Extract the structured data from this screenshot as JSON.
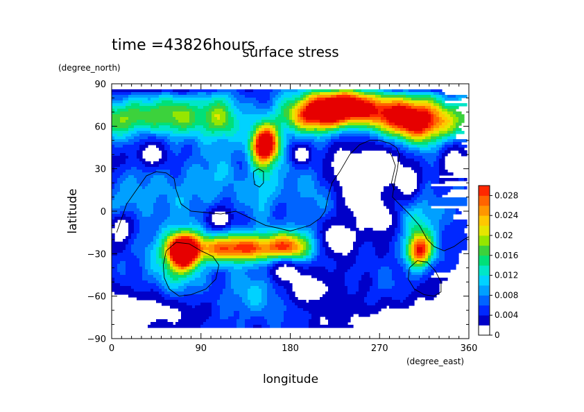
{
  "header": {
    "time_label": "time =43826hours",
    "title": "surface stress"
  },
  "chart_data": {
    "type": "heatmap",
    "title": "surface stress",
    "xlabel": "longitude",
    "ylabel": "latitude",
    "x_units": "(degree_east)",
    "y_units": "(degree_north)",
    "xlim": [
      0,
      360
    ],
    "ylim": [
      -90,
      90
    ],
    "x_ticks": [
      0,
      90,
      180,
      270,
      360
    ],
    "y_ticks": [
      -90,
      -60,
      -30,
      0,
      30,
      60,
      90
    ],
    "x_tick_labels": [
      "0",
      "90",
      "180",
      "270",
      "360"
    ],
    "y_tick_labels": [
      "−90",
      "−60",
      "−30",
      "0",
      "30",
      "60",
      "90"
    ],
    "colorbar": {
      "min": 0,
      "max": 0.03,
      "tick_values": [
        0,
        0.004,
        0.008,
        0.012,
        0.016,
        0.02,
        0.024,
        0.028
      ],
      "tick_labels": [
        "0",
        "0.004",
        "0.008",
        "0.012",
        "0.016",
        "0.02",
        "0.024",
        "0.028"
      ],
      "levels": [
        0.002,
        0.004,
        0.006,
        0.008,
        0.01,
        0.012,
        0.014,
        0.016,
        0.018,
        0.02,
        0.022,
        0.024,
        0.026,
        0.028,
        0.03
      ],
      "colors": [
        "#ffffff",
        "#0000c8",
        "#0028ff",
        "#0064ff",
        "#00a0ff",
        "#00d2ff",
        "#00e6c8",
        "#00e078",
        "#3cd23c",
        "#96e600",
        "#e6e600",
        "#ffc800",
        "#ff9600",
        "#ff6400",
        "#ff2800",
        "#e60000"
      ]
    },
    "field": {
      "background": 0.0055,
      "features": [
        {
          "lon": 20,
          "lat": 66,
          "amp": 0.01,
          "sx": 20,
          "sy": 9
        },
        {
          "lon": 65,
          "lat": 68,
          "amp": 0.012,
          "sx": 22,
          "sy": 10
        },
        {
          "lon": 110,
          "lat": 65,
          "amp": 0.013,
          "sx": 14,
          "sy": 11
        },
        {
          "lon": 155,
          "lat": 47,
          "amp": 0.03,
          "sx": 10,
          "sy": 9
        },
        {
          "lon": 152,
          "lat": 28,
          "amp": 0.006,
          "sx": 9,
          "sy": 18
        },
        {
          "lon": 225,
          "lat": 73,
          "amp": 0.03,
          "sx": 26,
          "sy": 9
        },
        {
          "lon": 195,
          "lat": 65,
          "amp": 0.012,
          "sx": 22,
          "sy": 8
        },
        {
          "lon": 305,
          "lat": 63,
          "amp": 0.03,
          "sx": 28,
          "sy": 11
        },
        {
          "lon": 265,
          "lat": 72,
          "amp": 0.01,
          "sx": 30,
          "sy": 9
        },
        {
          "lon": 72,
          "lat": -28,
          "amp": 0.036,
          "sx": 11,
          "sy": 9
        },
        {
          "lon": 60,
          "lat": -45,
          "amp": 0.006,
          "sx": 18,
          "sy": 15
        },
        {
          "lon": 130,
          "lat": -26,
          "amp": 0.024,
          "sx": 35,
          "sy": 7
        },
        {
          "lon": 185,
          "lat": -25,
          "amp": 0.014,
          "sx": 18,
          "sy": 8
        },
        {
          "lon": 310,
          "lat": -28,
          "amp": 0.022,
          "sx": 9,
          "sy": 8
        },
        {
          "lon": 310,
          "lat": -5,
          "amp": 0.008,
          "sx": 12,
          "sy": 15
        },
        {
          "lon": 30,
          "lat": 10,
          "amp": 0.004,
          "sx": 25,
          "sy": 15
        },
        {
          "lon": 150,
          "lat": -60,
          "amp": 0.005,
          "sx": 30,
          "sy": 12
        },
        {
          "lon": 100,
          "lat": 20,
          "amp": 0.004,
          "sx": 25,
          "sy": 15
        },
        {
          "lon": 200,
          "lat": 15,
          "amp": 0.003,
          "sx": 30,
          "sy": 15
        }
      ],
      "gaps": [
        {
          "lon": 20,
          "lat": 88,
          "sx": 70,
          "sy": 3
        },
        {
          "lon": 270,
          "lat": 32,
          "sx": 22,
          "sy": 16
        },
        {
          "lon": 300,
          "lat": 20,
          "sx": 10,
          "sy": 10
        },
        {
          "lon": 235,
          "lat": 30,
          "sx": 14,
          "sy": 14
        },
        {
          "lon": 250,
          "lat": 10,
          "sx": 12,
          "sy": 10
        },
        {
          "lon": 200,
          "lat": -55,
          "sx": 22,
          "sy": 10
        },
        {
          "lon": 230,
          "lat": -20,
          "sx": 18,
          "sy": 12
        },
        {
          "lon": 270,
          "lat": -5,
          "sx": 12,
          "sy": 10
        },
        {
          "lon": 15,
          "lat": -70,
          "sx": 55,
          "sy": 10
        },
        {
          "lon": 300,
          "lat": -80,
          "sx": 70,
          "sy": 10
        },
        {
          "lon": 40,
          "lat": 40,
          "sx": 12,
          "sy": 8
        },
        {
          "lon": 10,
          "lat": -12,
          "sx": 10,
          "sy": 8
        },
        {
          "lon": 345,
          "lat": 35,
          "sx": 12,
          "sy": 10
        },
        {
          "lon": 110,
          "lat": -5,
          "sx": 10,
          "sy": 6
        },
        {
          "lon": 190,
          "lat": 40,
          "sx": 8,
          "sy": 6
        },
        {
          "lon": 345,
          "lat": -55,
          "sx": 14,
          "sy": 10
        },
        {
          "lon": 175,
          "lat": -42,
          "sx": 14,
          "sy": 6
        }
      ]
    },
    "contour_lines": [
      {
        "name": "continent-a",
        "points": [
          [
            5,
            -15
          ],
          [
            15,
            5
          ],
          [
            25,
            15
          ],
          [
            35,
            25
          ],
          [
            45,
            28
          ],
          [
            55,
            27
          ],
          [
            63,
            23
          ],
          [
            65,
            15
          ],
          [
            70,
            5
          ],
          [
            80,
            0
          ],
          [
            95,
            -1
          ],
          [
            110,
            -2
          ],
          [
            125,
            0
          ],
          [
            140,
            -5
          ],
          [
            155,
            -10
          ],
          [
            168,
            -12
          ],
          [
            180,
            -14
          ],
          [
            190,
            -12
          ],
          [
            200,
            -10
          ],
          [
            210,
            -5
          ],
          [
            215,
            0
          ],
          [
            218,
            10
          ],
          [
            222,
            20
          ],
          [
            230,
            28
          ],
          [
            240,
            40
          ],
          [
            250,
            47
          ],
          [
            260,
            50
          ],
          [
            270,
            50
          ],
          [
            280,
            48
          ],
          [
            287,
            45
          ],
          [
            290,
            40
          ],
          [
            288,
            30
          ],
          [
            285,
            20
          ],
          [
            283,
            10
          ],
          [
            290,
            5
          ],
          [
            300,
            -2
          ],
          [
            310,
            -10
          ],
          [
            318,
            -20
          ],
          [
            325,
            -25
          ],
          [
            335,
            -28
          ],
          [
            345,
            -25
          ],
          [
            355,
            -20
          ],
          [
            360,
            -18
          ]
        ]
      },
      {
        "name": "continent-b",
        "points": [
          [
            280,
            42
          ],
          [
            283,
            38
          ],
          [
            286,
            32
          ],
          [
            284,
            26
          ],
          [
            282,
            20
          ],
          [
            285,
            15
          ]
        ]
      },
      {
        "name": "island-a",
        "points": [
          [
            143,
            28
          ],
          [
            148,
            30
          ],
          [
            153,
            28
          ],
          [
            153,
            20
          ],
          [
            149,
            17
          ],
          [
            144,
            19
          ],
          [
            143,
            24
          ],
          [
            143,
            28
          ]
        ]
      },
      {
        "name": "island-b",
        "points": [
          [
            55,
            -28
          ],
          [
            65,
            -22
          ],
          [
            78,
            -23
          ],
          [
            90,
            -28
          ],
          [
            102,
            -32
          ],
          [
            108,
            -38
          ],
          [
            105,
            -48
          ],
          [
            95,
            -55
          ],
          [
            80,
            -59
          ],
          [
            68,
            -60
          ],
          [
            58,
            -55
          ],
          [
            53,
            -47
          ],
          [
            52,
            -38
          ],
          [
            55,
            -28
          ]
        ]
      },
      {
        "name": "island-c",
        "points": [
          [
            300,
            -40
          ],
          [
            308,
            -35
          ],
          [
            318,
            -36
          ],
          [
            326,
            -42
          ],
          [
            332,
            -50
          ],
          [
            332,
            -57
          ],
          [
            325,
            -60
          ],
          [
            315,
            -59
          ],
          [
            305,
            -55
          ],
          [
            299,
            -48
          ],
          [
            300,
            -40
          ]
        ]
      }
    ]
  }
}
